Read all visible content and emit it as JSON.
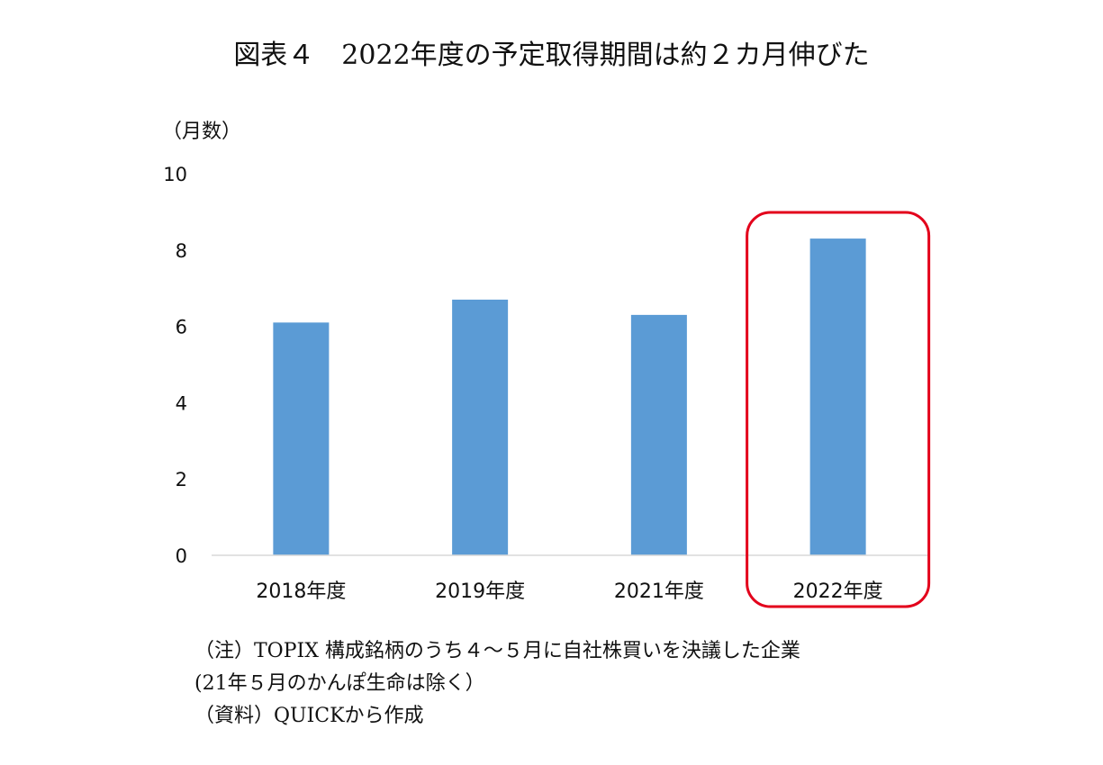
{
  "title": "図表４　2022年度の予定取得期間は約２カ月伸びた",
  "chart_data": {
    "type": "bar",
    "ylabel": "（月数）",
    "categories": [
      "2018年度",
      "2019年度",
      "2021年度",
      "2022年度"
    ],
    "values": [
      6.1,
      6.7,
      6.3,
      8.3
    ],
    "ylim": [
      0,
      10
    ],
    "yticks": [
      0,
      2,
      4,
      6,
      8,
      10
    ],
    "grid": false,
    "bar_color": "#5b9bd5",
    "highlight": {
      "category": "2022年度",
      "color": "#e3001b"
    }
  },
  "notes": [
    "（注）TOPIX 構成銘柄のうち４～５月に自社株買いを決議した企業",
    "(21年５月のかんぽ生命は除く）",
    "（資料）QUICKから作成"
  ]
}
